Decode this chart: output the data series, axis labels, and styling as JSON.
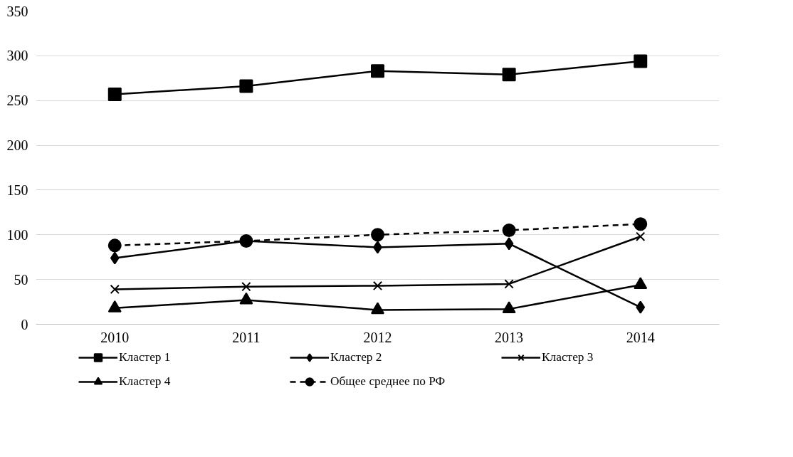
{
  "chart_data": {
    "type": "line",
    "categories": [
      "2010",
      "2011",
      "2012",
      "2013",
      "2014"
    ],
    "ylim": [
      0,
      350
    ],
    "yticks": [
      0,
      50,
      100,
      150,
      200,
      250,
      300,
      350
    ],
    "grid": "y",
    "legend": "bottom",
    "series": [
      {
        "name": "Кластер 1",
        "color": "#000000",
        "marker": "square",
        "line_style": "solid",
        "values": [
          257,
          266,
          283,
          279,
          294
        ]
      },
      {
        "name": "Кластер 2",
        "color": "#000000",
        "marker": "diamond",
        "line_style": "solid",
        "values": [
          74,
          93,
          86,
          90,
          19
        ]
      },
      {
        "name": "Кластер 3",
        "color": "#000000",
        "marker": "cross",
        "line_style": "solid",
        "values": [
          39,
          42,
          43,
          45,
          98
        ]
      },
      {
        "name": "Кластер 4",
        "color": "#000000",
        "marker": "triangle",
        "line_style": "solid",
        "values": [
          18,
          27,
          16,
          17,
          44
        ]
      },
      {
        "name": "Общее среднее по РФ",
        "color": "#000000",
        "marker": "circle",
        "line_style": "dashed",
        "values": [
          88,
          93,
          100,
          105,
          112
        ]
      }
    ]
  }
}
